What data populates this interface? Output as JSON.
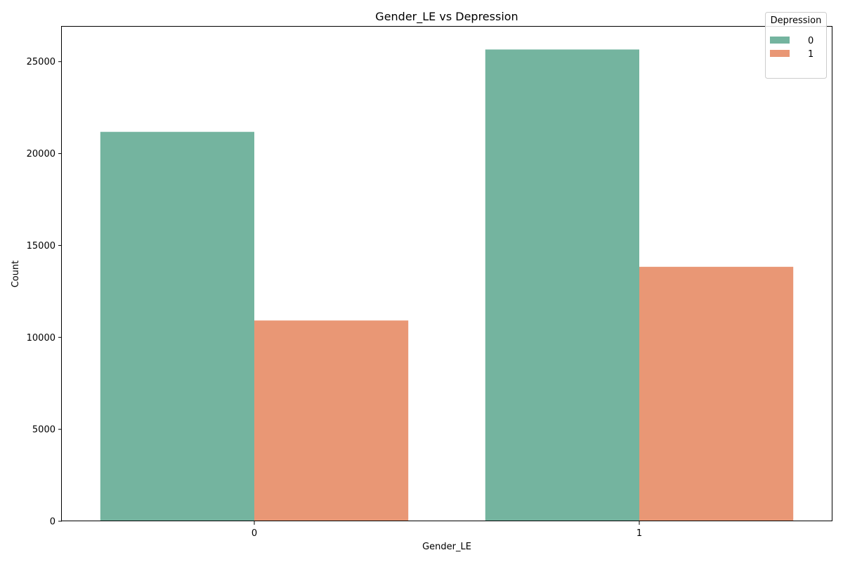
{
  "chart_data": {
    "type": "bar",
    "title": "Gender_LE vs Depression",
    "xlabel": "Gender_LE",
    "ylabel": "Count",
    "categories": [
      "0",
      "1"
    ],
    "series": [
      {
        "name": "0",
        "values": [
          21180,
          25660
        ],
        "color": "#74b49f"
      },
      {
        "name": "1",
        "values": [
          10920,
          13840
        ],
        "color": "#e99775"
      }
    ],
    "ylim": [
      0,
      26900
    ],
    "yticks": [
      0,
      5000,
      10000,
      15000,
      20000,
      25000
    ],
    "grid": false,
    "legend": {
      "title": "Depression",
      "placement": "top-right"
    }
  }
}
